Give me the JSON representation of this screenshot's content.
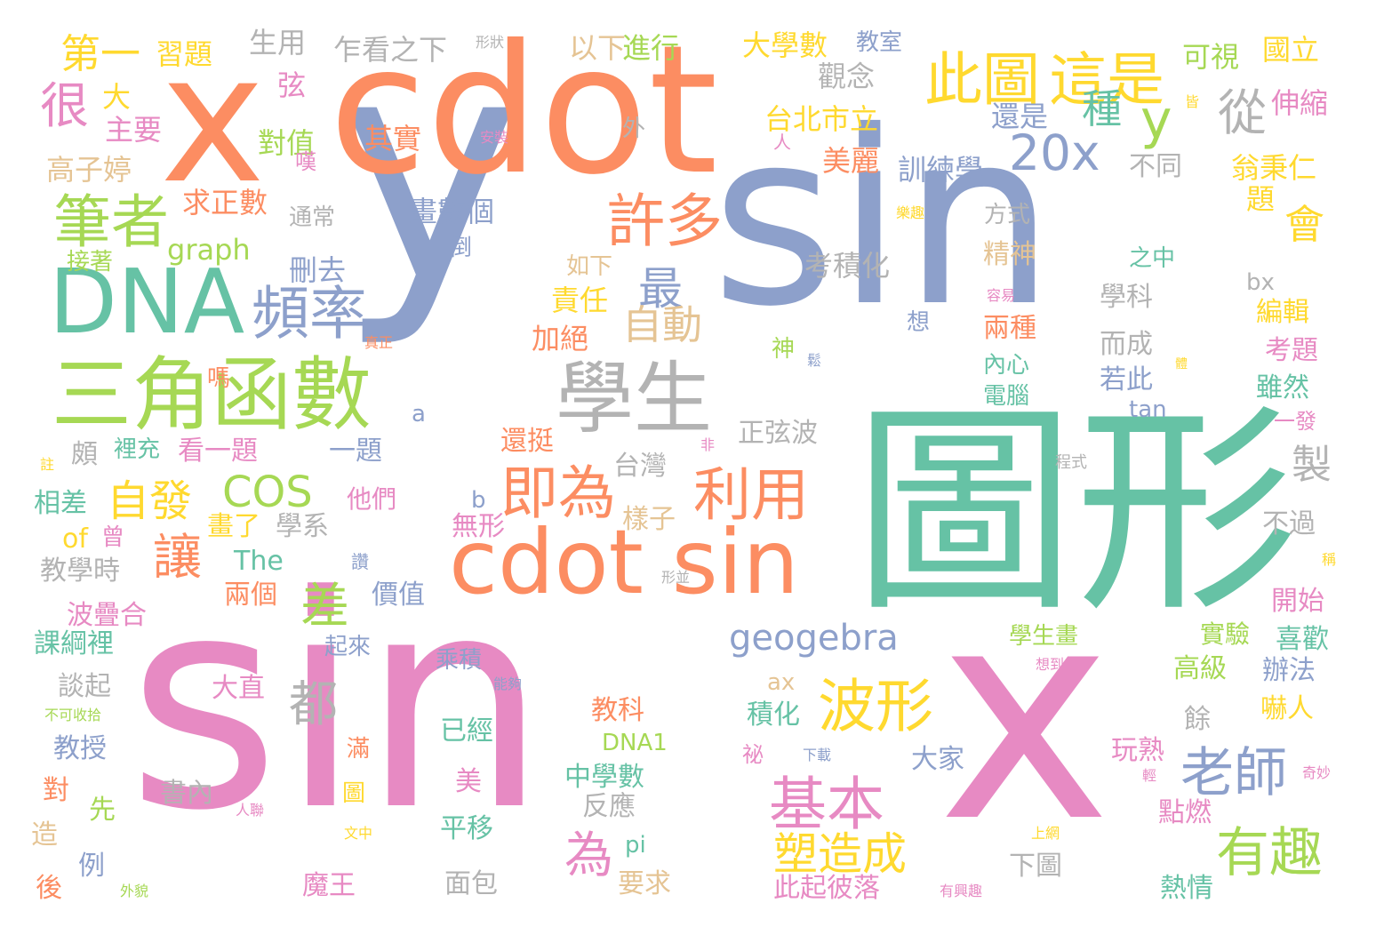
{
  "palette": {
    "orange": "#fc8d62",
    "green": "#66c2a5",
    "blue": "#8da0cb",
    "pink": "#e78ac3",
    "lime": "#a6d854",
    "yellow": "#ffd92f",
    "tan": "#e5c494",
    "gray": "#b3b3b3"
  },
  "words": [
    {
      "text": "y",
      "color": "blue"
    },
    {
      "text": "sin",
      "color": "blue"
    },
    {
      "text": "sin",
      "color": "pink"
    },
    {
      "text": "x",
      "color": "pink"
    },
    {
      "text": "x",
      "color": "orange"
    },
    {
      "text": "cdot",
      "color": "orange"
    },
    {
      "text": "圖形",
      "color": "green"
    },
    {
      "text": "cdot sin",
      "color": "orange"
    },
    {
      "text": "DNA",
      "color": "green"
    },
    {
      "text": "三角函數",
      "color": "lime"
    },
    {
      "text": "學生",
      "color": "gray"
    },
    {
      "text": "此圖",
      "color": "yellow"
    },
    {
      "text": "這是",
      "color": "yellow"
    },
    {
      "text": "y",
      "color": "lime"
    },
    {
      "text": "20x",
      "color": "blue"
    },
    {
      "text": "筆者",
      "color": "lime"
    },
    {
      "text": "頻率",
      "color": "blue"
    },
    {
      "text": "許多",
      "color": "orange"
    },
    {
      "text": "即為",
      "color": "orange"
    },
    {
      "text": "利用",
      "color": "orange"
    },
    {
      "text": "波形",
      "color": "yellow"
    },
    {
      "text": "基本",
      "color": "pink"
    },
    {
      "text": "老師",
      "color": "blue"
    },
    {
      "text": "有趣",
      "color": "lime"
    },
    {
      "text": "geogebra",
      "color": "blue"
    },
    {
      "text": "COS",
      "color": "lime"
    },
    {
      "text": "讓",
      "color": "orange"
    },
    {
      "text": "差",
      "color": "lime"
    },
    {
      "text": "都",
      "color": "gray"
    },
    {
      "text": "為",
      "color": "pink"
    },
    {
      "text": "塑造成",
      "color": "yellow"
    },
    {
      "text": "自發",
      "color": "yellow"
    },
    {
      "text": "很",
      "color": "pink"
    },
    {
      "text": "從",
      "color": "gray"
    },
    {
      "text": "最",
      "color": "blue"
    },
    {
      "text": "自動",
      "color": "tan"
    },
    {
      "text": "種",
      "color": "green"
    },
    {
      "text": "製",
      "color": "gray"
    },
    {
      "text": "會",
      "color": "yellow"
    },
    {
      "text": "第一",
      "color": "yellow"
    },
    {
      "text": "習題",
      "color": "yellow"
    },
    {
      "text": "生用",
      "color": "gray"
    },
    {
      "text": "乍看之下",
      "color": "gray"
    },
    {
      "text": "形狀",
      "color": "gray"
    },
    {
      "text": "以下",
      "color": "tan"
    },
    {
      "text": "進行",
      "color": "lime"
    },
    {
      "text": "大學數",
      "color": "yellow"
    },
    {
      "text": "教室",
      "color": "blue"
    },
    {
      "text": "觀念",
      "color": "gray"
    },
    {
      "text": "可視",
      "color": "lime"
    },
    {
      "text": "國立",
      "color": "yellow"
    },
    {
      "text": "大",
      "color": "yellow"
    },
    {
      "text": "主要",
      "color": "pink"
    },
    {
      "text": "弦",
      "color": "pink"
    },
    {
      "text": "對值",
      "color": "lime"
    },
    {
      "text": "其實",
      "color": "orange"
    },
    {
      "text": "安裝",
      "color": "pink"
    },
    {
      "text": "外",
      "color": "gray"
    },
    {
      "text": "台北市立",
      "color": "yellow"
    },
    {
      "text": "還是",
      "color": "blue"
    },
    {
      "text": "皆",
      "color": "yellow"
    },
    {
      "text": "伸縮",
      "color": "pink"
    },
    {
      "text": "高子婷",
      "color": "tan"
    },
    {
      "text": "嘆",
      "color": "pink"
    },
    {
      "text": "美麗",
      "color": "orange"
    },
    {
      "text": "訓練學",
      "color": "blue"
    },
    {
      "text": "不同",
      "color": "gray"
    },
    {
      "text": "翁秉仁",
      "color": "yellow"
    },
    {
      "text": "人",
      "color": "pink"
    },
    {
      "text": "求正數",
      "color": "orange"
    },
    {
      "text": "通常",
      "color": "gray"
    },
    {
      "text": "畫數個",
      "color": "blue"
    },
    {
      "text": "樂趣",
      "color": "yellow"
    },
    {
      "text": "方式",
      "color": "gray"
    },
    {
      "text": "題",
      "color": "yellow"
    },
    {
      "text": "graph",
      "color": "lime"
    },
    {
      "text": "接著",
      "color": "lime"
    },
    {
      "text": "刪去",
      "color": "blue"
    },
    {
      "text": "倒",
      "color": "blue"
    },
    {
      "text": "考積化",
      "color": "gray"
    },
    {
      "text": "精神",
      "color": "tan"
    },
    {
      "text": "之中",
      "color": "green"
    },
    {
      "text": "如下",
      "color": "tan"
    },
    {
      "text": "容易",
      "color": "pink"
    },
    {
      "text": "bx",
      "color": "gray"
    },
    {
      "text": "責任",
      "color": "yellow"
    },
    {
      "text": "學科",
      "color": "gray"
    },
    {
      "text": "編輯",
      "color": "yellow"
    },
    {
      "text": "加絕",
      "color": "orange"
    },
    {
      "text": "真正",
      "color": "orange"
    },
    {
      "text": "神",
      "color": "lime"
    },
    {
      "text": "鬆",
      "color": "blue"
    },
    {
      "text": "想",
      "color": "blue"
    },
    {
      "text": "兩種",
      "color": "orange"
    },
    {
      "text": "而成",
      "color": "gray"
    },
    {
      "text": "考題",
      "color": "pink"
    },
    {
      "text": "嗎",
      "color": "orange"
    },
    {
      "text": "內心",
      "color": "green"
    },
    {
      "text": "體",
      "color": "yellow"
    },
    {
      "text": "雖然",
      "color": "green"
    },
    {
      "text": "電腦",
      "color": "green"
    },
    {
      "text": "若此",
      "color": "blue"
    },
    {
      "text": "a",
      "color": "blue"
    },
    {
      "text": "tan",
      "color": "blue"
    },
    {
      "text": "一發",
      "color": "pink"
    },
    {
      "text": "頗",
      "color": "gray"
    },
    {
      "text": "裡充",
      "color": "green"
    },
    {
      "text": "看一題",
      "color": "pink"
    },
    {
      "text": "一題",
      "color": "blue"
    },
    {
      "text": "還挺",
      "color": "orange"
    },
    {
      "text": "正弦波",
      "color": "gray"
    },
    {
      "text": "非",
      "color": "pink"
    },
    {
      "text": "程式",
      "color": "gray"
    },
    {
      "text": "註",
      "color": "yellow"
    },
    {
      "text": "台灣",
      "color": "gray"
    },
    {
      "text": "相差",
      "color": "green"
    },
    {
      "text": "b",
      "color": "blue"
    },
    {
      "text": "他們",
      "color": "pink"
    },
    {
      "text": "樣子",
      "color": "tan"
    },
    {
      "text": "不過",
      "color": "gray"
    },
    {
      "text": "畫了",
      "color": "yellow"
    },
    {
      "text": "學系",
      "color": "gray"
    },
    {
      "text": "無形",
      "color": "pink"
    },
    {
      "text": "of",
      "color": "yellow"
    },
    {
      "text": "曾",
      "color": "pink"
    },
    {
      "text": "The",
      "color": "green"
    },
    {
      "text": "讚",
      "color": "blue"
    },
    {
      "text": "稱",
      "color": "yellow"
    },
    {
      "text": "教學時",
      "color": "gray"
    },
    {
      "text": "形並",
      "color": "gray"
    },
    {
      "text": "兩個",
      "color": "orange"
    },
    {
      "text": "價值",
      "color": "blue"
    },
    {
      "text": "開始",
      "color": "pink"
    },
    {
      "text": "波疊合",
      "color": "pink"
    },
    {
      "text": "學生畫",
      "color": "lime"
    },
    {
      "text": "實驗",
      "color": "lime"
    },
    {
      "text": "喜歡",
      "color": "green"
    },
    {
      "text": "課綱裡",
      "color": "green"
    },
    {
      "text": "起來",
      "color": "blue"
    },
    {
      "text": "乘積",
      "color": "blue"
    },
    {
      "text": "高級",
      "color": "lime"
    },
    {
      "text": "想到",
      "color": "pink"
    },
    {
      "text": "辦法",
      "color": "blue"
    },
    {
      "text": "大直",
      "color": "pink"
    },
    {
      "text": "ax",
      "color": "tan"
    },
    {
      "text": "能夠",
      "color": "blue"
    },
    {
      "text": "談起",
      "color": "gray"
    },
    {
      "text": "不可收拾",
      "color": "lime"
    },
    {
      "text": "教科",
      "color": "orange"
    },
    {
      "text": "積化",
      "color": "green"
    },
    {
      "text": "餘",
      "color": "gray"
    },
    {
      "text": "嚇人",
      "color": "yellow"
    },
    {
      "text": "已經",
      "color": "green"
    },
    {
      "text": "教授",
      "color": "blue"
    },
    {
      "text": "DNA1",
      "color": "lime"
    },
    {
      "text": "祕",
      "color": "pink"
    },
    {
      "text": "下載",
      "color": "blue"
    },
    {
      "text": "滿",
      "color": "orange"
    },
    {
      "text": "大家",
      "color": "blue"
    },
    {
      "text": "玩熟",
      "color": "pink"
    },
    {
      "text": "奇妙",
      "color": "pink"
    },
    {
      "text": "對",
      "color": "orange"
    },
    {
      "text": "中學數",
      "color": "green"
    },
    {
      "text": "美",
      "color": "pink"
    },
    {
      "text": "輕",
      "color": "pink"
    },
    {
      "text": "書內",
      "color": "gray"
    },
    {
      "text": "圖",
      "color": "yellow"
    },
    {
      "text": "先",
      "color": "lime"
    },
    {
      "text": "人聯",
      "color": "pink"
    },
    {
      "text": "反應",
      "color": "gray"
    },
    {
      "text": "點燃",
      "color": "pink"
    },
    {
      "text": "造",
      "color": "tan"
    },
    {
      "text": "文中",
      "color": "yellow"
    },
    {
      "text": "平移",
      "color": "green"
    },
    {
      "text": "上網",
      "color": "yellow"
    },
    {
      "text": "例",
      "color": "blue"
    },
    {
      "text": "pi",
      "color": "green"
    },
    {
      "text": "下圖",
      "color": "gray"
    },
    {
      "text": "後",
      "color": "orange"
    },
    {
      "text": "外貌",
      "color": "lime"
    },
    {
      "text": "魔王",
      "color": "pink"
    },
    {
      "text": "面包",
      "color": "gray"
    },
    {
      "text": "要求",
      "color": "tan"
    },
    {
      "text": "此起彼落",
      "color": "pink"
    },
    {
      "text": "有興趣",
      "color": "pink"
    },
    {
      "text": "熱情",
      "color": "green"
    }
  ]
}
